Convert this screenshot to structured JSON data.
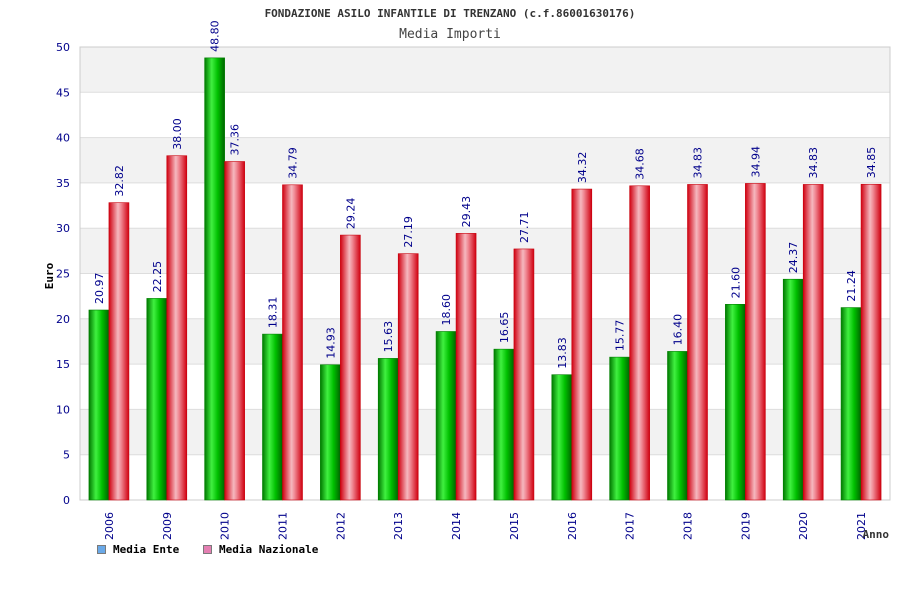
{
  "chart_data": {
    "type": "bar",
    "title": "FONDAZIONE ASILO INFANTILE DI TRENZANO (c.f.86001630176)",
    "subtitle": "Media Importi",
    "ylabel": "Euro",
    "xlabel": "Anno",
    "ylim": [
      0,
      50
    ],
    "yticks": [
      "0",
      "5",
      "10",
      "15",
      "20",
      "25",
      "30",
      "35",
      "40",
      "45",
      "50"
    ],
    "grid": true,
    "legend_position": "bottom-left",
    "categories": [
      "2006",
      "2009",
      "2010",
      "2011",
      "2012",
      "2013",
      "2014",
      "2015",
      "2016",
      "2017",
      "2018",
      "2019",
      "2020",
      "2021"
    ],
    "series": [
      {
        "name": "Media Ente",
        "values": [
          20.97,
          22.25,
          48.8,
          18.31,
          14.93,
          15.63,
          18.6,
          16.65,
          13.83,
          15.77,
          16.4,
          21.6,
          24.37,
          21.24
        ],
        "labels": [
          "20.97",
          "22.25",
          "48.80",
          "18.31",
          "14.93",
          "15.63",
          "18.60",
          "16.65",
          "13.83",
          "15.77",
          "16.40",
          "21.60",
          "24.37",
          "21.24"
        ]
      },
      {
        "name": "Media Nazionale",
        "values": [
          32.82,
          38.0,
          37.36,
          34.79,
          29.24,
          27.19,
          29.43,
          27.71,
          34.32,
          34.68,
          34.83,
          34.94,
          34.83,
          34.85
        ],
        "labels": [
          "32.82",
          "38.00",
          "37.36",
          "34.79",
          "29.24",
          "27.19",
          "29.43",
          "27.71",
          "34.32",
          "34.68",
          "34.83",
          "34.94",
          "34.83",
          "34.85"
        ]
      }
    ]
  },
  "legend": {
    "items": [
      {
        "label": "Media Ente",
        "color": "#6aa9e8"
      },
      {
        "label": "Media Nazionale",
        "color": "#e47fb2"
      }
    ]
  },
  "colors": {
    "axis_text": "#00008b",
    "bar_ente": "#00c000",
    "bar_nazionale": "#ee1c2a",
    "band": "#f2f2f2"
  }
}
